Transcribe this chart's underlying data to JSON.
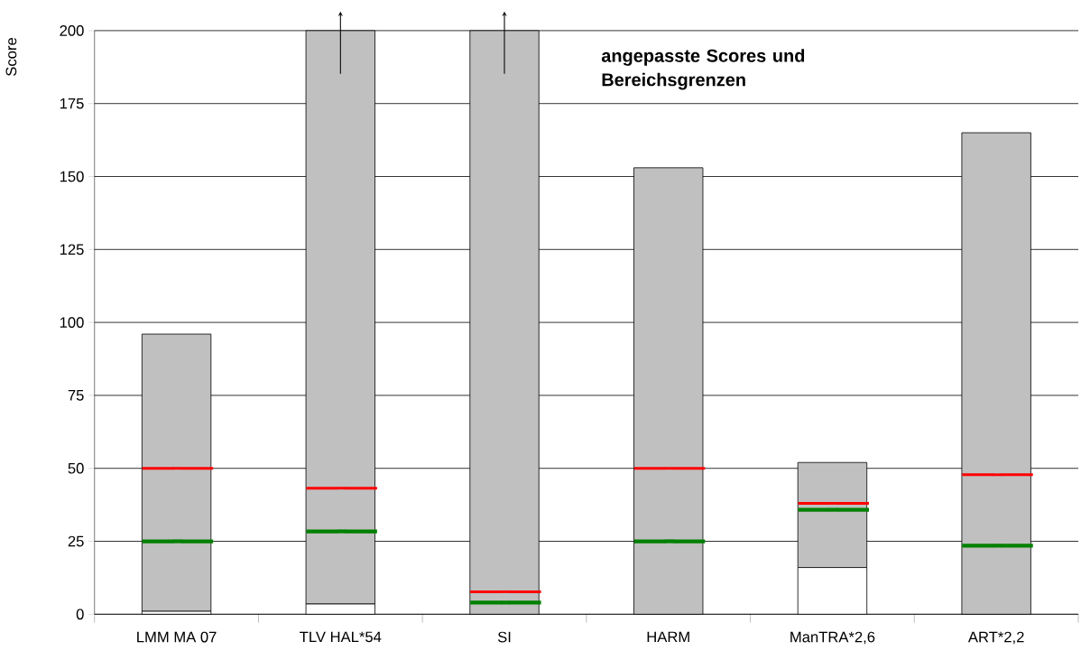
{
  "chart_data": {
    "type": "bar",
    "title": "angepasste Scores und Bereichsgrenzen",
    "ylabel": "Score",
    "categories": [
      "LMM MA 07",
      "TLV HAL*54",
      "SI",
      "HARM",
      "ManTRA*2,6",
      "ART*2,2"
    ],
    "stacked": true,
    "ylim": [
      0,
      200
    ],
    "yticks": [
      0,
      25,
      50,
      75,
      100,
      125,
      150,
      175,
      200
    ],
    "grid": "y",
    "series": [
      {
        "color": "#ffffff",
        "values": [
          1,
          3.5,
          0,
          0,
          16,
          0
        ]
      },
      {
        "color": "#c0c0c0",
        "values": [
          95,
          196.5,
          200,
          153,
          36,
          165
        ]
      },
      {
        "type": "scatter",
        "color": "#ff0000",
        "values": [
          50,
          43.2,
          7.7,
          50,
          38,
          47.8
        ]
      },
      {
        "type": "scatter",
        "color": "#008000",
        "values": [
          25,
          28.4,
          4,
          25,
          35.8,
          23.5
        ]
      }
    ]
  }
}
